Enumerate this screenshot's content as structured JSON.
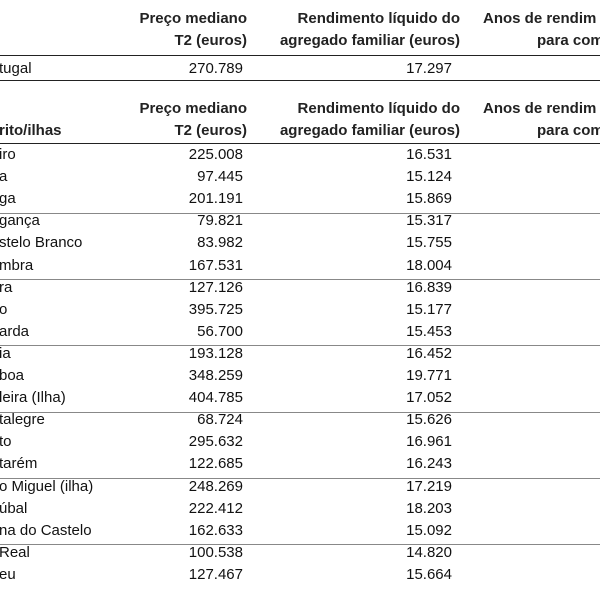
{
  "header": {
    "col1": [
      "Preço mediano",
      "T2 (euros)"
    ],
    "col2": [
      "Rendimento líquido do",
      "agregado familiar (euros)"
    ],
    "col3": [
      "Anos de rendim",
      "para com"
    ]
  },
  "national": {
    "name": "tugal",
    "price": "270.789",
    "income": "17.297"
  },
  "subheader": {
    "label": "rito/ilhas",
    "col1": [
      "Preço mediano",
      "T2 (euros)"
    ],
    "col2": [
      "Rendimento líquido do",
      "agregado familiar (euros)"
    ],
    "col3": [
      "Anos de rendim",
      "para com"
    ]
  },
  "rows": [
    [
      "iro",
      "225.008",
      "16.531"
    ],
    [
      "a",
      "97.445",
      "15.124"
    ],
    [
      "ga",
      "201.191",
      "15.869"
    ],
    [
      "gança",
      "79.821",
      "15.317"
    ],
    [
      "stelo Branco",
      "83.982",
      "15.755"
    ],
    [
      "mbra",
      "167.531",
      "18.004"
    ],
    [
      "ra",
      "127.126",
      "16.839"
    ],
    [
      "o",
      "395.725",
      "15.177"
    ],
    [
      "arda",
      "56.700",
      "15.453"
    ],
    [
      "ia",
      "193.128",
      "16.452"
    ],
    [
      "boa",
      "348.259",
      "19.771"
    ],
    [
      "leira (Ilha)",
      "404.785",
      "17.052"
    ],
    [
      "talegre",
      "68.724",
      "15.626"
    ],
    [
      "to",
      "295.632",
      "16.961"
    ],
    [
      "tarém",
      "122.685",
      "16.243"
    ],
    [
      "o Miguel (ilha)",
      "248.269",
      "17.219"
    ],
    [
      "úbal",
      "222.412",
      "18.203"
    ],
    [
      "na do Castelo",
      "162.633",
      "15.092"
    ],
    [
      "Real",
      "100.538",
      "14.820"
    ],
    [
      "eu",
      "127.467",
      "15.664"
    ]
  ]
}
